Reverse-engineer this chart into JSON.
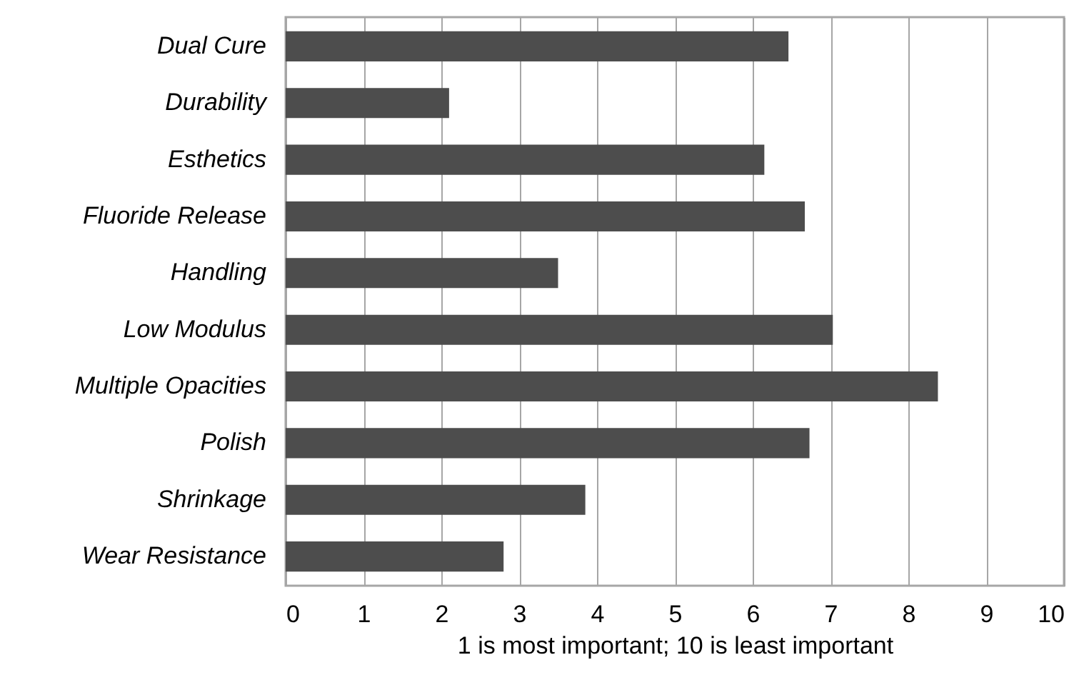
{
  "chart_data": {
    "type": "bar",
    "orientation": "horizontal",
    "xlabel": "1 is  most important; 10 is least important",
    "categories": [
      "Dual Cure",
      "Durability",
      "Esthetics",
      "Fluoride Release",
      "Handling",
      "Low Modulus",
      "Multiple Opacities",
      "Polish",
      "Shrinkage",
      "Wear Resistance"
    ],
    "values": [
      6.46,
      2.1,
      6.15,
      6.67,
      3.5,
      7.03,
      8.38,
      6.73,
      3.85,
      2.8
    ],
    "color": "#4d4d4d",
    "xlim": [
      0,
      10
    ],
    "xticks": [
      0,
      1,
      2,
      3,
      4,
      5,
      6,
      7,
      8,
      9,
      10
    ],
    "grid": "x"
  }
}
